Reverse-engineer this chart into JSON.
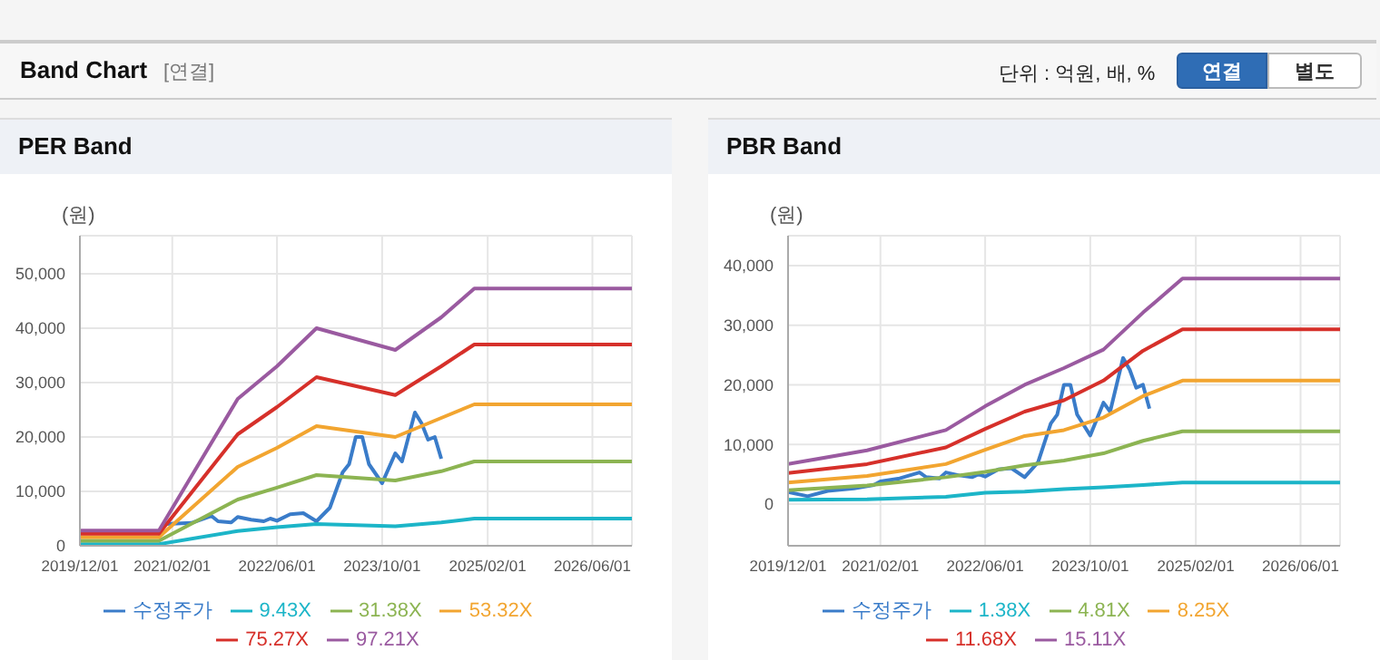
{
  "chart_data": [
    {
      "type": "line",
      "title": "PER Band",
      "ylabel": "(원)",
      "annotations": [
        "Band Chart",
        "[연결]",
        "단위 : 억원, 배, %",
        "연결",
        "별도"
      ],
      "xlim": [
        "2019-12-01",
        "2026-12-01"
      ],
      "xticks": [
        {
          "value": "2019-12-01",
          "label": "2019/12/01"
        },
        {
          "value": "2021-02-01",
          "label": "2021/02/01"
        },
        {
          "value": "2022-06-01",
          "label": "2022/06/01"
        },
        {
          "value": "2023-10-01",
          "label": "2023/10/01"
        },
        {
          "value": "2025-02-01",
          "label": "2025/02/01"
        },
        {
          "value": "2026-06-01",
          "label": "2026/06/01"
        }
      ],
      "ylim": [
        0,
        57000
      ],
      "yticks": [
        {
          "value": 0,
          "label": "0"
        },
        {
          "value": 10000,
          "label": "10,000"
        },
        {
          "value": 20000,
          "label": "20,000"
        },
        {
          "value": 30000,
          "label": "30,000"
        },
        {
          "value": 40000,
          "label": "40,000"
        },
        {
          "value": 50000,
          "label": "50,000"
        }
      ],
      "grid": true,
      "legend": "bottom",
      "marker": "none",
      "line_style": "solid",
      "series": [
        {
          "name": "수정주가",
          "color": "#3a7cc9",
          "x": [
            "2021-01",
            "2021-05",
            "2021-08",
            "2021-09",
            "2021-11",
            "2021-12",
            "2022-02",
            "2022-04",
            "2022-05",
            "2022-06",
            "2022-08",
            "2022-10",
            "2022-12",
            "2023-02",
            "2023-04",
            "2023-05",
            "2023-06",
            "2023-07",
            "2023-08",
            "2023-10",
            "2023-12",
            "2024-01",
            "2024-03",
            "2024-04",
            "2024-05",
            "2024-06",
            "2024-07"
          ],
          "values": [
            4000,
            4200,
            5500,
            4500,
            4300,
            5300,
            4800,
            4500,
            5000,
            4600,
            5800,
            6000,
            4500,
            7000,
            13500,
            15000,
            20000,
            20000,
            15000,
            11500,
            17000,
            15500,
            24500,
            22500,
            19500,
            20000,
            16000
          ]
        },
        {
          "name": "9.43X",
          "color": "#1cb5c8",
          "x": [
            "2019-12",
            "2020-12",
            "2021-12",
            "2022-06",
            "2022-12",
            "2023-12",
            "2024-07",
            "2024-12",
            "2026-12"
          ],
          "values": [
            300,
            300,
            2700,
            3400,
            4000,
            3600,
            4300,
            5000,
            5000
          ]
        },
        {
          "name": "31.38X",
          "color": "#8cb452",
          "x": [
            "2019-12",
            "2020-12",
            "2021-12",
            "2022-06",
            "2022-12",
            "2023-12",
            "2024-07",
            "2024-12",
            "2026-12"
          ],
          "values": [
            900,
            900,
            8500,
            10700,
            13000,
            12000,
            13700,
            15500,
            15500
          ]
        },
        {
          "name": "53.32X",
          "color": "#f2a530",
          "x": [
            "2019-12",
            "2020-12",
            "2021-12",
            "2022-06",
            "2022-12",
            "2023-12",
            "2024-07",
            "2024-12",
            "2026-12"
          ],
          "values": [
            1600,
            1600,
            14500,
            18000,
            22000,
            20000,
            23500,
            26000,
            26000
          ]
        },
        {
          "name": "75.27X",
          "color": "#d6302a",
          "x": [
            "2019-12",
            "2020-12",
            "2021-12",
            "2022-06",
            "2022-12",
            "2023-12",
            "2024-07",
            "2024-12",
            "2026-12"
          ],
          "values": [
            2200,
            2200,
            20500,
            25500,
            31000,
            27700,
            33000,
            37000,
            37000
          ]
        },
        {
          "name": "97.21X",
          "color": "#9a5aa0",
          "x": [
            "2019-12",
            "2020-12",
            "2021-12",
            "2022-06",
            "2022-12",
            "2023-12",
            "2024-07",
            "2024-12",
            "2026-12"
          ],
          "values": [
            2800,
            2800,
            27000,
            33000,
            40000,
            36000,
            42000,
            47300,
            47300
          ]
        }
      ]
    },
    {
      "type": "line",
      "title": "PBR Band",
      "ylabel": "(원)",
      "xlim": [
        "2019-12-01",
        "2026-12-01"
      ],
      "xticks": [
        {
          "value": "2019-12-01",
          "label": "2019/12/01"
        },
        {
          "value": "2021-02-01",
          "label": "2021/02/01"
        },
        {
          "value": "2022-06-01",
          "label": "2022/06/01"
        },
        {
          "value": "2023-10-01",
          "label": "2023/10/01"
        },
        {
          "value": "2025-02-01",
          "label": "2025/02/01"
        },
        {
          "value": "2026-06-01",
          "label": "2026/06/01"
        }
      ],
      "ylim": [
        -7000,
        45000
      ],
      "yticks": [
        {
          "value": 0,
          "label": "0"
        },
        {
          "value": 10000,
          "label": "10,000"
        },
        {
          "value": 20000,
          "label": "20,000"
        },
        {
          "value": 30000,
          "label": "30,000"
        },
        {
          "value": 40000,
          "label": "40,000"
        }
      ],
      "grid": true,
      "legend": "bottom",
      "marker": "none",
      "line_style": "solid",
      "series": [
        {
          "name": "수정주가",
          "color": "#3a7cc9",
          "x": [
            "2019-12",
            "2020-03",
            "2020-06",
            "2020-10",
            "2021-01",
            "2021-02",
            "2021-05",
            "2021-08",
            "2021-09",
            "2021-11",
            "2021-12",
            "2022-02",
            "2022-04",
            "2022-05",
            "2022-06",
            "2022-08",
            "2022-10",
            "2022-12",
            "2023-02",
            "2023-04",
            "2023-05",
            "2023-06",
            "2023-07",
            "2023-08",
            "2023-10",
            "2023-12",
            "2024-01",
            "2024-03",
            "2024-04",
            "2024-05",
            "2024-06",
            "2024-07"
          ],
          "values": [
            2000,
            1300,
            2200,
            2600,
            3200,
            3800,
            4300,
            5300,
            4500,
            4300,
            5300,
            4800,
            4500,
            5000,
            4600,
            5800,
            6000,
            4500,
            7000,
            13500,
            15000,
            20000,
            20000,
            15000,
            11500,
            17000,
            15500,
            24500,
            22500,
            19500,
            20000,
            16000
          ]
        },
        {
          "name": "1.38X",
          "color": "#1cb5c8",
          "x": [
            "2019-12",
            "2020-12",
            "2021-12",
            "2022-06",
            "2022-12",
            "2023-06",
            "2023-12",
            "2024-06",
            "2024-12",
            "2026-12"
          ],
          "values": [
            700,
            800,
            1200,
            1900,
            2100,
            2500,
            2800,
            3200,
            3600,
            3600
          ]
        },
        {
          "name": "4.81X",
          "color": "#8cb452",
          "x": [
            "2019-12",
            "2020-12",
            "2021-12",
            "2022-06",
            "2022-12",
            "2023-06",
            "2023-12",
            "2024-06",
            "2024-12",
            "2026-12"
          ],
          "values": [
            2300,
            3100,
            4500,
            5400,
            6500,
            7300,
            8500,
            10600,
            12200,
            12200
          ]
        },
        {
          "name": "8.25X",
          "color": "#f2a530",
          "x": [
            "2019-12",
            "2020-12",
            "2021-12",
            "2022-06",
            "2022-12",
            "2023-06",
            "2023-12",
            "2024-06",
            "2024-12",
            "2026-12"
          ],
          "values": [
            3600,
            4700,
            6700,
            9100,
            11400,
            12400,
            14500,
            18100,
            20700,
            20700
          ]
        },
        {
          "name": "11.68X",
          "color": "#d6302a",
          "x": [
            "2019-12",
            "2020-12",
            "2021-12",
            "2022-06",
            "2022-12",
            "2023-06",
            "2023-12",
            "2024-06",
            "2024-12",
            "2026-12"
          ],
          "values": [
            5200,
            6700,
            9500,
            12600,
            15500,
            17400,
            20700,
            25700,
            29300,
            29300
          ]
        },
        {
          "name": "15.11X",
          "color": "#9a5aa0",
          "x": [
            "2019-12",
            "2020-12",
            "2021-12",
            "2022-06",
            "2022-12",
            "2023-06",
            "2023-12",
            "2024-06",
            "2024-12",
            "2026-12"
          ],
          "values": [
            6700,
            9000,
            12400,
            16400,
            20000,
            22800,
            25900,
            32100,
            37800,
            37800
          ]
        }
      ]
    }
  ]
}
